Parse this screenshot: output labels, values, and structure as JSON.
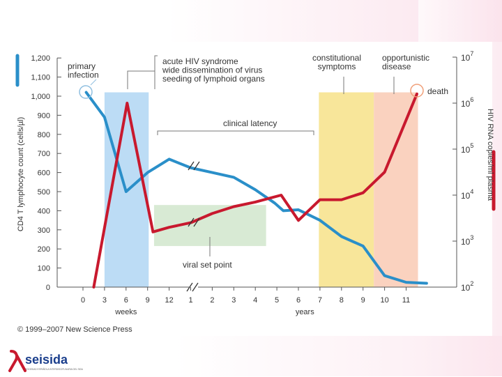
{
  "chart_data": {
    "type": "line",
    "title": "",
    "ylabel_left": "CD4 T lymphocyte count (cells/µl)",
    "ylabel_right": "HIV RNA copies/ml plasma",
    "xlabel_weeks": "weeks",
    "xlabel_years": "years",
    "x_tick_labels": [
      "0",
      "3",
      "6",
      "9",
      "12",
      "1",
      "2",
      "3",
      "4",
      "5",
      "6",
      "7",
      "8",
      "9",
      "10",
      "11"
    ],
    "y_left_ticks": [
      "0",
      "100",
      "200",
      "300",
      "400",
      "500",
      "600",
      "700",
      "800",
      "900",
      "1,000",
      "1,100",
      "1,200"
    ],
    "y_left_range": [
      0,
      1200
    ],
    "y_right_ticks": [
      {
        "base": "10",
        "exp": "2",
        "log": 2
      },
      {
        "base": "10",
        "exp": "3",
        "log": 3
      },
      {
        "base": "10",
        "exp": "4",
        "log": 4
      },
      {
        "base": "10",
        "exp": "5",
        "log": 5
      },
      {
        "base": "10",
        "exp": "6",
        "log": 6
      },
      {
        "base": "10",
        "exp": "7",
        "log": 7
      }
    ],
    "y_right_log_range": [
      2,
      7
    ],
    "x_index_note": "x positions are tick indices: 0..4 = weeks 0,3,6,9,12; 5..15 = years 1..11",
    "regions": [
      {
        "name": "acute-phase",
        "x": [
          1,
          3.05
        ],
        "y": [
          0,
          1020
        ],
        "color": "#bcdcf5"
      },
      {
        "name": "set-point",
        "x": [
          3.3,
          8.5
        ],
        "y": [
          215,
          430
        ],
        "color": "#d8ead4"
      },
      {
        "name": "constitutional",
        "x": [
          10.95,
          13.5
        ],
        "y": [
          0,
          1020
        ],
        "color": "#f8e69a"
      },
      {
        "name": "opportunistic",
        "x": [
          13.5,
          15.55
        ],
        "y": [
          0,
          1020
        ],
        "color": "#fad2bf"
      }
    ],
    "series": [
      {
        "name": "CD4 T lymphocyte count",
        "axis": "left",
        "color": "#2a8fc9",
        "points": [
          [
            0.15,
            1020
          ],
          [
            1,
            890
          ],
          [
            2,
            500
          ],
          [
            3,
            600
          ],
          [
            4,
            670
          ],
          [
            5,
            625
          ],
          [
            6,
            600
          ],
          [
            7,
            575
          ],
          [
            8,
            510
          ],
          [
            8.9,
            440
          ],
          [
            9.3,
            400
          ],
          [
            10,
            405
          ],
          [
            11,
            350
          ],
          [
            12,
            265
          ],
          [
            13,
            215
          ],
          [
            14,
            60
          ],
          [
            15,
            25
          ],
          [
            15.95,
            20
          ]
        ]
      },
      {
        "name": "HIV RNA copies/ml plasma",
        "axis": "right",
        "color": "#c8192e",
        "points": [
          [
            0.5,
            2.0
          ],
          [
            2.05,
            6.0
          ],
          [
            3.25,
            3.2
          ],
          [
            4,
            3.3
          ],
          [
            5,
            3.4
          ],
          [
            6,
            3.6
          ],
          [
            7,
            3.75
          ],
          [
            8,
            3.85
          ],
          [
            9.2,
            4.0
          ],
          [
            10,
            3.45
          ],
          [
            11,
            3.9
          ],
          [
            12,
            3.9
          ],
          [
            13,
            4.05
          ],
          [
            14,
            4.5
          ],
          [
            15.5,
            6.2
          ]
        ]
      }
    ],
    "annotations": {
      "primary_infection": "primary\ninfection",
      "acute_syndrome": "acute HIV syndrome\nwide dissemination of virus\nseeding of lymphoid organs",
      "clinical_latency": "clinical latency",
      "constitutional_symptoms": "constitutional\nsymptoms",
      "opportunistic_disease": "opportunistic\ndisease",
      "death": "death",
      "viral_set_point": "viral set point"
    },
    "copyright": "© 1999–2007 New Science Press"
  },
  "logo": {
    "brand": "seisida",
    "tagline": "SOCIEDAD ESPAÑOLA INTERDISCIPLINARIA DEL SIDA"
  },
  "colors": {
    "accent_blue": "#2a8fc9",
    "accent_red": "#c8192e",
    "logo_red": "#c8192e",
    "logo_blue": "#1a3e8c"
  }
}
